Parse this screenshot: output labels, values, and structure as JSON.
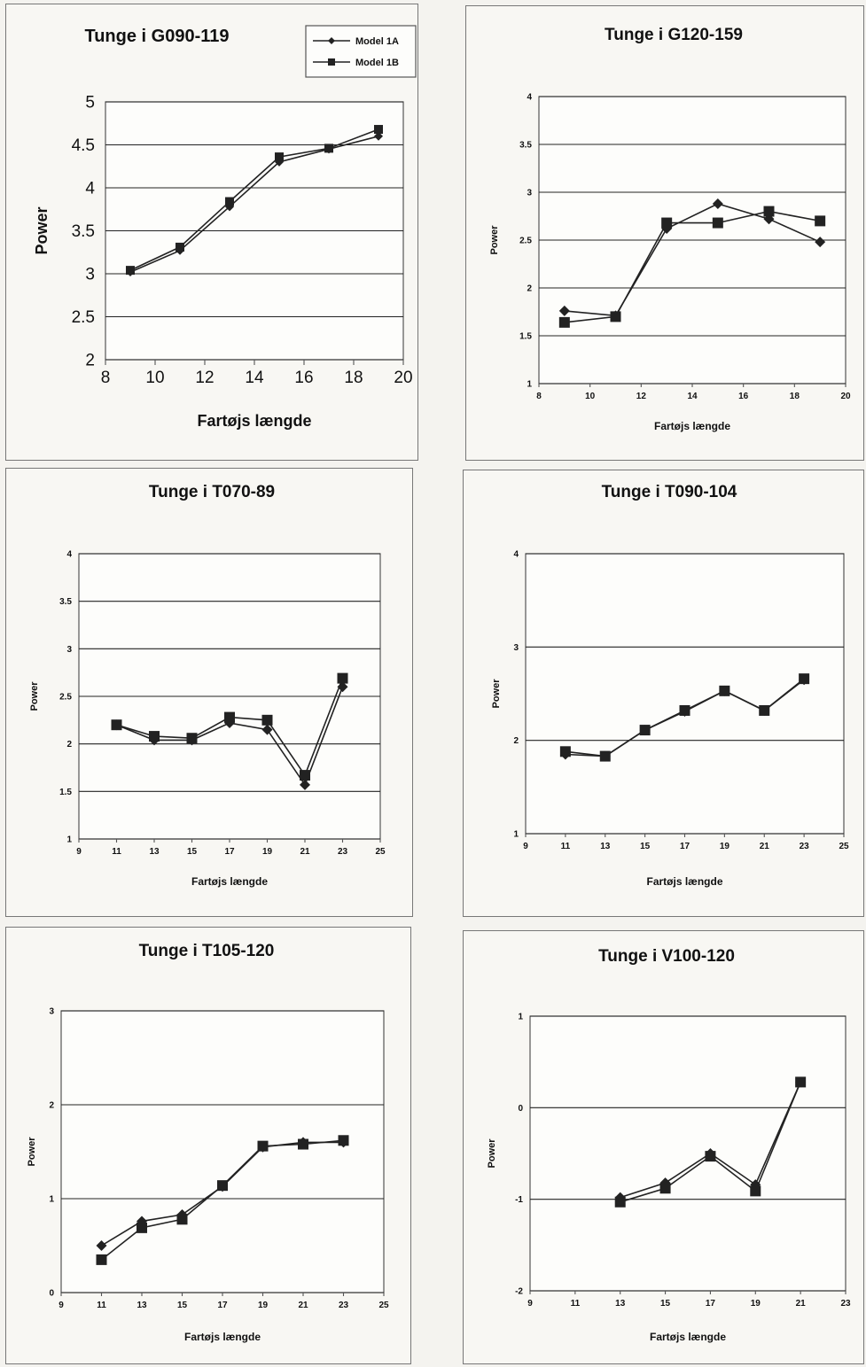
{
  "colors": {
    "line": "#222222",
    "grid": "#222222",
    "frame": "#555555",
    "background": "#f8f7f3"
  },
  "chart_data": [
    {
      "type": "line",
      "title": "Tunge i G090-119",
      "xlabel": "Fartøjs længde",
      "ylabel": "Power",
      "xlim": [
        8,
        20
      ],
      "ylim": [
        2,
        5
      ],
      "xticks": [
        8,
        10,
        12,
        14,
        16,
        18,
        20
      ],
      "yticks": [
        2,
        2.5,
        3,
        3.5,
        4,
        4.5,
        5
      ],
      "ytick_labels": [
        "2",
        "2.5",
        "3",
        "3.5",
        "4",
        "4.5",
        "5"
      ],
      "grid": "horizontal",
      "legend": "top-right",
      "series": [
        {
          "name": "Model 1A",
          "marker": "diamond",
          "x": [
            9,
            11,
            13,
            15,
            17,
            19
          ],
          "y": [
            3.02,
            3.27,
            3.78,
            4.3,
            4.45,
            4.6
          ]
        },
        {
          "name": "Model 1B",
          "marker": "square",
          "x": [
            9,
            11,
            13,
            15,
            17,
            19
          ],
          "y": [
            3.04,
            3.31,
            3.84,
            4.36,
            4.46,
            4.68
          ]
        }
      ]
    },
    {
      "type": "line",
      "title": "Tunge  i G120-159",
      "xlabel": "Fartøjs længde",
      "ylabel": "Power",
      "xlim": [
        8,
        20
      ],
      "ylim": [
        1,
        4
      ],
      "xticks": [
        8,
        10,
        12,
        14,
        16,
        18,
        20
      ],
      "yticks": [
        1,
        1.5,
        2,
        2.5,
        3,
        3.5,
        4
      ],
      "ytick_labels": [
        "1",
        "1.5",
        "2",
        "2.5",
        "3",
        "3.5",
        "4"
      ],
      "grid": "horizontal",
      "series": [
        {
          "marker": "diamond",
          "x": [
            9,
            11,
            13,
            15,
            17,
            19
          ],
          "y": [
            1.76,
            1.71,
            2.62,
            2.88,
            2.72,
            2.48
          ]
        },
        {
          "marker": "square",
          "x": [
            9,
            11,
            13,
            15,
            17,
            19
          ],
          "y": [
            1.64,
            1.7,
            2.68,
            2.68,
            2.8,
            2.7
          ]
        }
      ]
    },
    {
      "type": "line",
      "title": "Tunge i T070-89",
      "xlabel": "Fartøjs længde",
      "ylabel": "Power",
      "xlim": [
        9,
        25
      ],
      "ylim": [
        1,
        4
      ],
      "xticks": [
        9,
        11,
        13,
        15,
        17,
        19,
        21,
        23,
        25
      ],
      "yticks": [
        1,
        1.5,
        2,
        2.5,
        3,
        3.5,
        4
      ],
      "ytick_labels": [
        "1",
        "1.5",
        "2",
        "2.5",
        "3",
        "3.5",
        "4"
      ],
      "grid": "horizontal",
      "series": [
        {
          "marker": "diamond",
          "x": [
            11,
            13,
            15,
            17,
            19,
            21,
            23
          ],
          "y": [
            2.2,
            2.04,
            2.04,
            2.22,
            2.15,
            1.57,
            2.6
          ]
        },
        {
          "marker": "square",
          "x": [
            11,
            13,
            15,
            17,
            19,
            21,
            23
          ],
          "y": [
            2.2,
            2.08,
            2.06,
            2.28,
            2.25,
            1.67,
            2.69
          ]
        }
      ]
    },
    {
      "type": "line",
      "title": "Tunge i T090-104",
      "xlabel": "Fartøjs længde",
      "ylabel": "Power",
      "xlim": [
        9,
        25
      ],
      "ylim": [
        1,
        4
      ],
      "xticks": [
        9,
        11,
        13,
        15,
        17,
        19,
        21,
        23,
        25
      ],
      "yticks": [
        1,
        2,
        3,
        4
      ],
      "ytick_labels": [
        "1",
        "2",
        "3",
        "4"
      ],
      "grid": "horizontal",
      "series": [
        {
          "marker": "diamond",
          "x": [
            11,
            13,
            15,
            17,
            19,
            21,
            23
          ],
          "y": [
            1.85,
            1.83,
            2.11,
            2.31,
            2.53,
            2.32,
            2.65
          ]
        },
        {
          "marker": "square",
          "x": [
            11,
            13,
            15,
            17,
            19,
            21,
            23
          ],
          "y": [
            1.88,
            1.83,
            2.11,
            2.32,
            2.53,
            2.32,
            2.66
          ]
        }
      ]
    },
    {
      "type": "line",
      "title": "Tunge i T105-120",
      "xlabel": "Fartøjs længde",
      "ylabel": "Power",
      "xlim": [
        9,
        25
      ],
      "ylim": [
        0,
        3
      ],
      "xticks": [
        9,
        11,
        13,
        15,
        17,
        19,
        21,
        23,
        25
      ],
      "yticks": [
        0,
        1,
        2,
        3
      ],
      "ytick_labels": [
        "0",
        "1",
        "2",
        "3"
      ],
      "grid": "horizontal",
      "series": [
        {
          "marker": "diamond",
          "x": [
            11,
            13,
            15,
            17,
            19,
            21,
            23
          ],
          "y": [
            0.5,
            0.76,
            0.83,
            1.13,
            1.55,
            1.6,
            1.6
          ]
        },
        {
          "marker": "square",
          "x": [
            11,
            13,
            15,
            17,
            19,
            21,
            23
          ],
          "y": [
            0.35,
            0.69,
            0.78,
            1.14,
            1.56,
            1.58,
            1.62
          ]
        }
      ]
    },
    {
      "type": "line",
      "title": "Tunge i V100-120",
      "xlabel": "Fartøjs længde",
      "ylabel": "Power",
      "xlim": [
        9,
        23
      ],
      "ylim": [
        -2,
        1
      ],
      "xticks": [
        9,
        11,
        13,
        15,
        17,
        19,
        21,
        23
      ],
      "yticks": [
        -2,
        -1,
        0,
        1
      ],
      "ytick_labels": [
        "-2",
        "-1",
        "0",
        "1"
      ],
      "grid": "horizontal",
      "series": [
        {
          "marker": "diamond",
          "x": [
            13,
            15,
            17,
            19,
            21
          ],
          "y": [
            -0.98,
            -0.82,
            -0.5,
            -0.84,
            0.28
          ]
        },
        {
          "marker": "square",
          "x": [
            13,
            15,
            17,
            19,
            21
          ],
          "y": [
            -1.03,
            -0.88,
            -0.53,
            -0.91,
            0.28
          ]
        }
      ]
    }
  ]
}
